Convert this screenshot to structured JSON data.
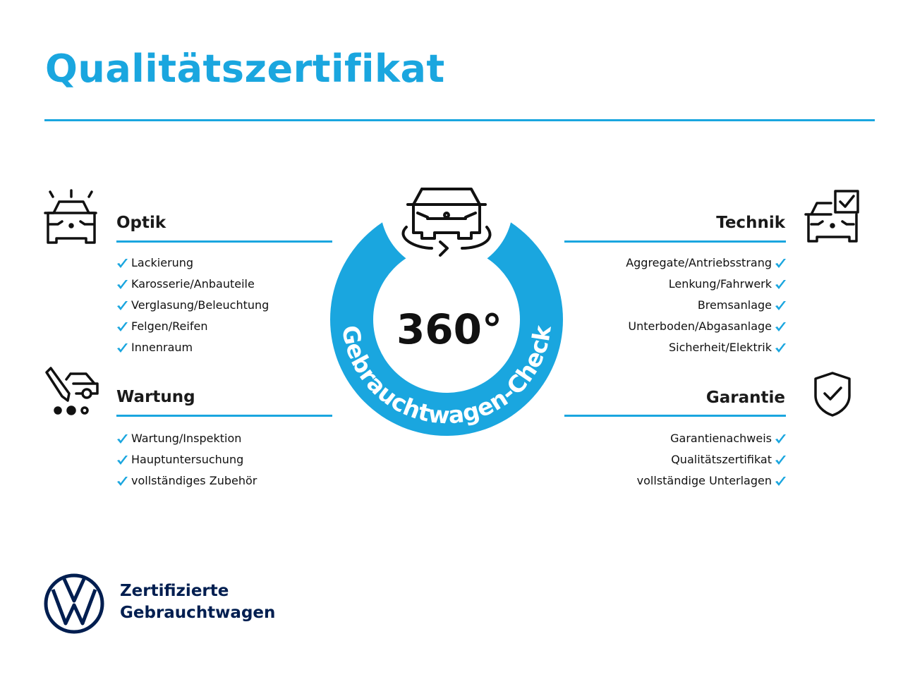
{
  "title": "Qualitätszertifikat",
  "colors": {
    "accent": "#1aa6df",
    "brand_navy": "#001e50"
  },
  "center": {
    "degree_label": "360°",
    "ring_text": "Gebrauchtwagen-Check",
    "icon": "car-rotate-icon"
  },
  "sections": {
    "optik": {
      "title": "Optik",
      "icon": "car-lights-icon",
      "items": [
        "Lackierung",
        "Karosserie/Anbauteile",
        "Verglasung/Beleuchtung",
        "Felgen/Reifen",
        "Innenraum"
      ]
    },
    "wartung": {
      "title": "Wartung",
      "icon": "service-tools-icon",
      "items": [
        "Wartung/Inspektion",
        "Hauptuntersuchung",
        "vollständiges Zubehör"
      ]
    },
    "technik": {
      "title": "Technik",
      "icon": "car-checklist-icon",
      "items": [
        "Aggregate/Antriebsstrang",
        "Lenkung/Fahrwerk",
        "Bremsanlage",
        "Unterboden/Abgasanlage",
        "Sicherheit/Elektrik"
      ]
    },
    "garantie": {
      "title": "Garantie",
      "icon": "shield-check-icon",
      "items": [
        "Garantienachweis",
        "Qualitätszertifikat",
        "vollständige Unterlagen"
      ]
    }
  },
  "brand": {
    "line1": "Zertifizierte",
    "line2": "Gebrauchtwagen",
    "logo": "vw-logo"
  }
}
